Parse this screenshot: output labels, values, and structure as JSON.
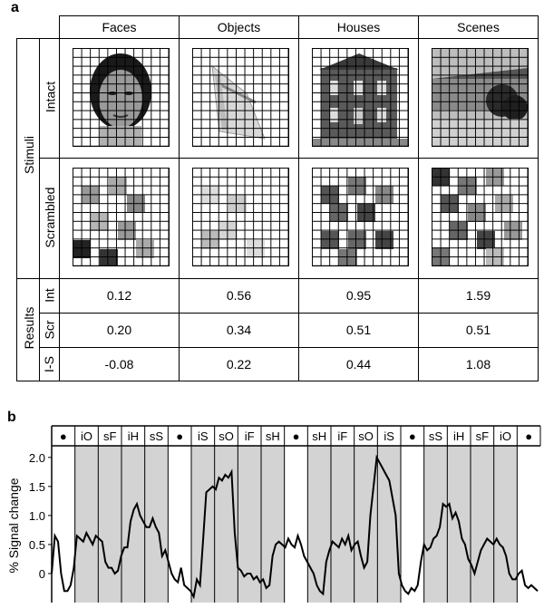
{
  "panel_a": {
    "label": "a",
    "columns": [
      "Faces",
      "Objects",
      "Houses",
      "Scenes"
    ],
    "row_groups": {
      "stimuli": "Stimuli",
      "results": "Results"
    },
    "stimuli_rows": [
      "Intact",
      "Scrambled"
    ],
    "result_rows": [
      {
        "label": "Int",
        "values": [
          "0.12",
          "0.56",
          "0.95",
          "1.59"
        ]
      },
      {
        "label": "Scr",
        "values": [
          "0.20",
          "0.34",
          "0.51",
          "0.51"
        ]
      },
      {
        "label": "I-S",
        "values": [
          "-0.08",
          "0.22",
          "0.44",
          "1.08"
        ]
      }
    ]
  },
  "panel_b": {
    "label": "b",
    "ylabel": "% Signal change",
    "blocks": [
      "●",
      "iO",
      "sF",
      "iH",
      "sS",
      "●",
      "iS",
      "sO",
      "iF",
      "sH",
      "●",
      "sH",
      "iF",
      "sO",
      "iS",
      "●",
      "sS",
      "iH",
      "sF",
      "iO",
      "●"
    ],
    "shaded_blocks": [
      false,
      true,
      true,
      true,
      true,
      false,
      true,
      true,
      true,
      true,
      false,
      true,
      true,
      true,
      true,
      false,
      true,
      true,
      true,
      true,
      false
    ]
  },
  "chart_data": {
    "type": "line",
    "title": "",
    "xlabel": "",
    "ylabel": "% Signal change",
    "ylim": [
      -0.5,
      2.2
    ],
    "yticks": [
      "0",
      "0.5",
      "1.0",
      "1.5",
      "2.0"
    ],
    "ytick_values": [
      0,
      0.5,
      1.0,
      1.5,
      2.0
    ],
    "grid": false,
    "series": [
      {
        "values": [
          0.0,
          0.65,
          0.55,
          0.0,
          -0.3,
          -0.3,
          -0.2,
          0.1,
          0.65,
          0.6,
          0.55,
          0.7,
          0.6,
          0.5,
          0.65,
          0.6,
          0.55,
          0.2,
          0.1,
          0.1,
          0.0,
          0.05,
          0.3,
          0.45,
          0.45,
          0.9,
          1.1,
          1.2,
          1.0,
          0.9,
          0.8,
          0.8,
          0.95,
          0.8,
          0.7,
          0.3,
          0.4,
          0.2,
          0.0,
          -0.1,
          -0.15,
          0.1,
          -0.2,
          -0.25,
          -0.3,
          -0.4,
          -0.1,
          -0.2,
          0.6,
          1.4,
          1.45,
          1.5,
          1.45,
          1.65,
          1.6,
          1.7,
          1.65,
          1.75,
          0.7,
          0.1,
          0.05,
          -0.05,
          0.0,
          0.0,
          -0.1,
          -0.05,
          -0.15,
          -0.1,
          -0.25,
          -0.2,
          0.3,
          0.5,
          0.55,
          0.5,
          0.45,
          0.6,
          0.5,
          0.45,
          0.65,
          0.5,
          0.3,
          0.2,
          0.1,
          0.0,
          -0.2,
          -0.3,
          -0.35,
          0.2,
          0.4,
          0.55,
          0.5,
          0.45,
          0.6,
          0.5,
          0.65,
          0.4,
          0.5,
          0.55,
          0.3,
          0.1,
          0.2,
          1.0,
          1.5,
          2.0,
          1.9,
          1.8,
          1.7,
          1.6,
          1.3,
          1.0,
          0.0,
          -0.2,
          -0.3,
          -0.35,
          -0.25,
          -0.3,
          -0.2,
          0.2,
          0.5,
          0.4,
          0.45,
          0.6,
          0.65,
          0.8,
          1.2,
          1.15,
          1.2,
          0.95,
          1.05,
          0.9,
          0.6,
          0.5,
          0.25,
          0.15,
          0.0,
          0.2,
          0.4,
          0.5,
          0.6,
          0.55,
          0.5,
          0.6,
          0.5,
          0.45,
          0.3,
          0.0,
          -0.1,
          -0.1,
          0.0,
          0.05,
          -0.2,
          -0.25,
          -0.2,
          -0.25,
          -0.3
        ]
      }
    ]
  }
}
